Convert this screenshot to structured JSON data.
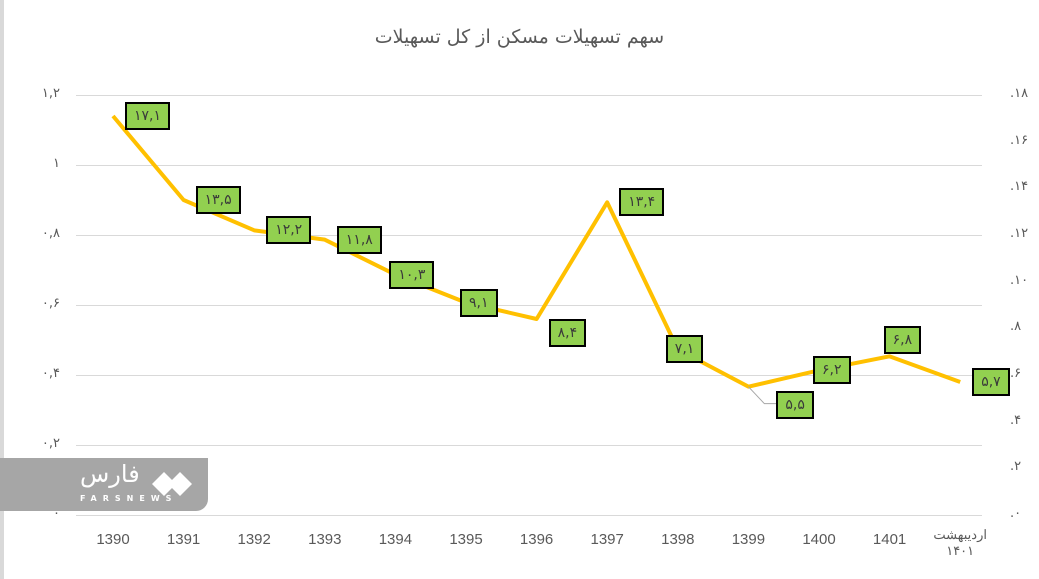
{
  "chart_data": {
    "type": "line",
    "title": "سهم تسهیلات مسکن از کل تسهیلات",
    "xlabel": "",
    "ylabel": "",
    "categories": [
      "1390",
      "1391",
      "1392",
      "1393",
      "1394",
      "1395",
      "1396",
      "1397",
      "1398",
      "1399",
      "1400",
      "1401",
      "اردیبهشت ۱۴۰۱"
    ],
    "series": [
      {
        "name": "سهم تسهیلات مسکن",
        "color": "#ffc000",
        "values": [
          17.1,
          13.5,
          12.2,
          11.8,
          10.3,
          9.1,
          8.4,
          13.4,
          7.1,
          5.5,
          6.2,
          6.8,
          5.7
        ],
        "labels": [
          "۱۷,۱",
          "۱۳,۵",
          "۱۲,۲",
          "۱۱,۸",
          "۱۰,۳",
          "۹,۱",
          "۸,۴",
          "۱۳,۴",
          "۷,۱",
          "۵,۵",
          "۶,۲",
          "۶,۸",
          "۵,۷"
        ]
      }
    ],
    "y_left": {
      "ticks": [
        "۱,۲",
        "۱",
        "۰,۸",
        "۰,۶",
        "۰,۴",
        "۰,۲",
        "۰"
      ],
      "range": [
        0,
        1.2
      ]
    },
    "y_right": {
      "ticks": [
        "۱۸",
        "۱۶",
        "۱۴",
        "۱۲",
        "۱۰",
        "۸",
        "۶",
        "۴",
        "۲",
        "۰"
      ],
      "range": [
        0,
        18
      ]
    },
    "ylim": [
      0,
      18
    ],
    "grid": true,
    "legend": "none",
    "label_style": {
      "background": "#92d050",
      "border": "#000000"
    }
  },
  "watermark": {
    "brand": "فارس",
    "sub": "FARSNEWS"
  }
}
